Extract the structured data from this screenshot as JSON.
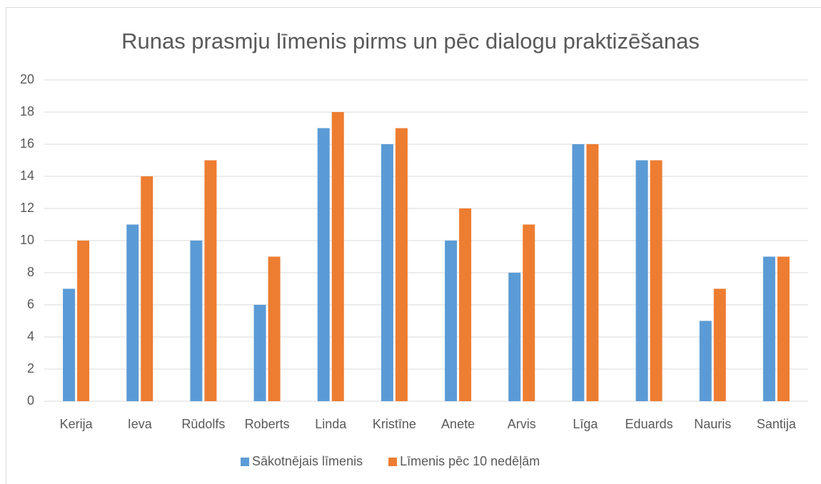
{
  "chart_data": {
    "type": "bar",
    "title": "Runas prasmju līmenis pirms un pēc dialogu praktizēšanas",
    "categories": [
      "Kerija",
      "Ieva",
      "Rūdolfs",
      "Roberts",
      "Linda",
      "Kristīne",
      "Anete",
      "Arvis",
      "Līga",
      "Eduards",
      "Nauris",
      "Santija"
    ],
    "series": [
      {
        "name": "Sākotnējais līmenis",
        "color": "#5b9bd5",
        "values": [
          7,
          11,
          10,
          6,
          17,
          16,
          10,
          8,
          16,
          15,
          5,
          9
        ]
      },
      {
        "name": "Līmenis pēc 10 nedēļām",
        "color": "#ed7d31",
        "values": [
          10,
          14,
          15,
          9,
          18,
          17,
          12,
          11,
          16,
          15,
          7,
          9
        ]
      }
    ],
    "ylim": [
      0,
      20
    ],
    "yticks": [
      0,
      2,
      4,
      6,
      8,
      10,
      12,
      14,
      16,
      18,
      20
    ],
    "grid": true,
    "legend": "bottom"
  }
}
